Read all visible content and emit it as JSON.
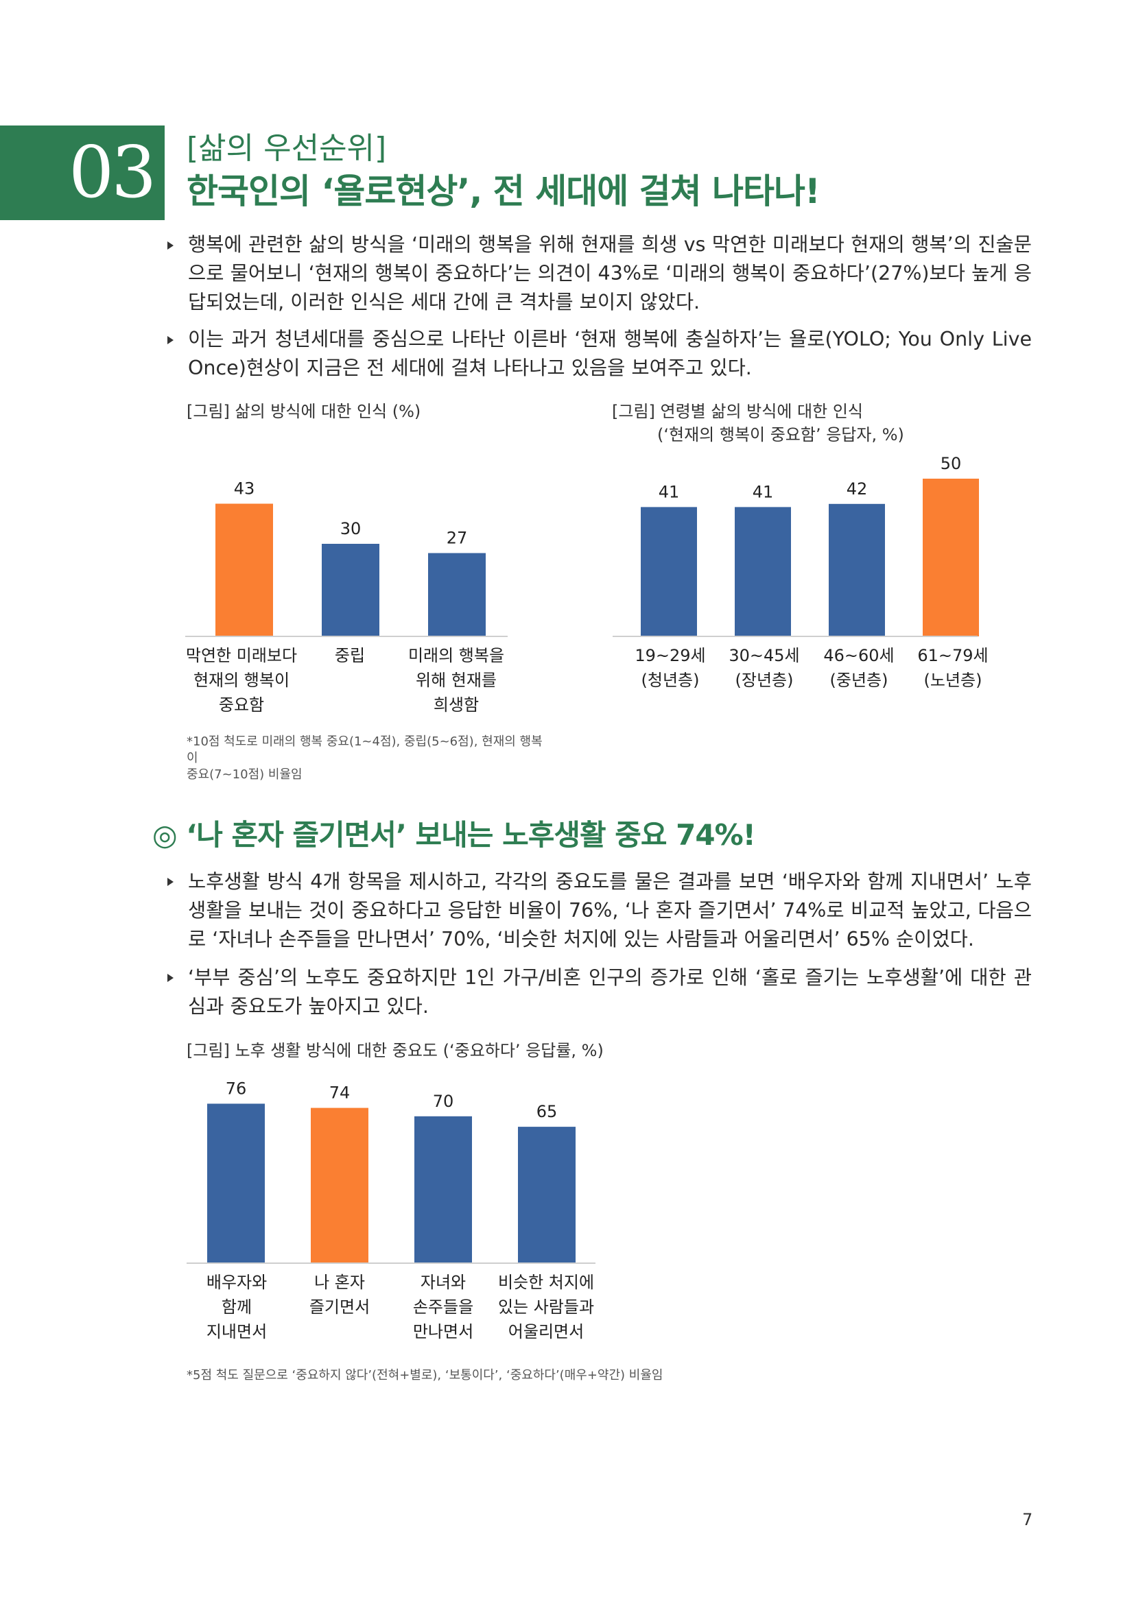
{
  "section": {
    "number": "03",
    "kicker": "[삶의 우선순위]",
    "title": "한국인의 ‘욜로현상’, 전 세대에 걸쳐 나타나!"
  },
  "bullets_top": [
    "행복에 관련한 삶의 방식을 ‘미래의 행복을 위해 현재를 희생 vs 막연한 미래보다 현재의 행복’의 진술문으로 물어보니 ‘현재의 행복이 중요하다’는 의견이 43%로 ‘미래의 행복이 중요하다’(27%)보다 높게 응답되었는데, 이러한 인식은 세대 간에 큰 격차를 보이지 않았다.",
    "이는 과거 청년세대를 중심으로 나타난 이른바 ‘현재 행복에 충실하자’는 욜로(YOLO; You Only Live Once)현상이 지금은 전 세대에 걸쳐 나타나고 있음을 보여주고 있다."
  ],
  "fig1": {
    "caption": "[그림] 삶의 방식에 대한 인식 (%)",
    "note": "*10점 척도로 미래의 행복 중요(1~4점), 중립(5~6점), 현재의 행복이\n 중요(7~10점) 비율임"
  },
  "fig2": {
    "caption": "[그림] 연령별 삶의 방식에 대한 인식",
    "subcaption": "(‘현재의 행복이 중요함’ 응답자, %)"
  },
  "subsection": {
    "title": "◎ ‘나 혼자 즐기면서’ 보내는 노후생활 중요 74%!"
  },
  "bullets_bottom": [
    "노후생활 방식 4개 항목을 제시하고, 각각의 중요도를 물은 결과를 보면 ‘배우자와 함께 지내면서’ 노후생활을 보내는 것이 중요하다고 응답한 비율이 76%, ‘나 혼자 즐기면서’ 74%로 비교적 높았고, 다음으로 ‘자녀나 손주들을 만나면서’ 70%, ‘비슷한 처지에 있는 사람들과 어울리면서’ 65% 순이었다.",
    "‘부부 중심’의 노후도 중요하지만 1인 가구/비혼 인구의 증가로 인해 ‘홀로 즐기는 노후생활’에 대한 관심과 중요도가 높아지고 있다."
  ],
  "fig3": {
    "caption": "[그림] 노후 생활 방식에 대한 중요도 (‘중요하다’ 응답률, %)",
    "note": "*5점 척도 질문으로 ‘중요하지 않다’(전혀+별로), ‘보통이다’, ‘중요하다’(매우+약간) 비율임"
  },
  "page_number": "7",
  "colors": {
    "blue": "#3a64a0",
    "orange": "#fa7f32",
    "green": "#2e7d52"
  },
  "chart_data": [
    {
      "type": "bar",
      "categories": [
        "막연한 미래보다\n현재의 행복이\n중요함",
        "중립",
        "미래의 행복을\n위해 현재를\n희생함"
      ],
      "values": [
        43,
        30,
        27
      ],
      "highlight": [
        true,
        false,
        false
      ],
      "title": "[그림] 삶의 방식에 대한 인식 (%)"
    },
    {
      "type": "bar",
      "categories": [
        "19~29세\n(청년층)",
        "30~45세\n(장년층)",
        "46~60세\n(중년층)",
        "61~79세\n(노년층)"
      ],
      "values": [
        41,
        41,
        42,
        50
      ],
      "highlight": [
        false,
        false,
        false,
        true
      ],
      "title": "[그림] 연령별 삶의 방식에 대한 인식"
    },
    {
      "type": "bar",
      "categories": [
        "배우자와\n함께\n지내면서",
        "나 혼자\n즐기면서",
        "자녀와\n손주들을\n만나면서",
        "비슷한 처지에\n있는 사람들과\n어울리면서"
      ],
      "values": [
        76,
        74,
        70,
        65
      ],
      "highlight": [
        false,
        true,
        false,
        false
      ],
      "title": "[그림] 노후 생활 방식에 대한 중요도 (‘중요하다’ 응답률, %)"
    }
  ]
}
